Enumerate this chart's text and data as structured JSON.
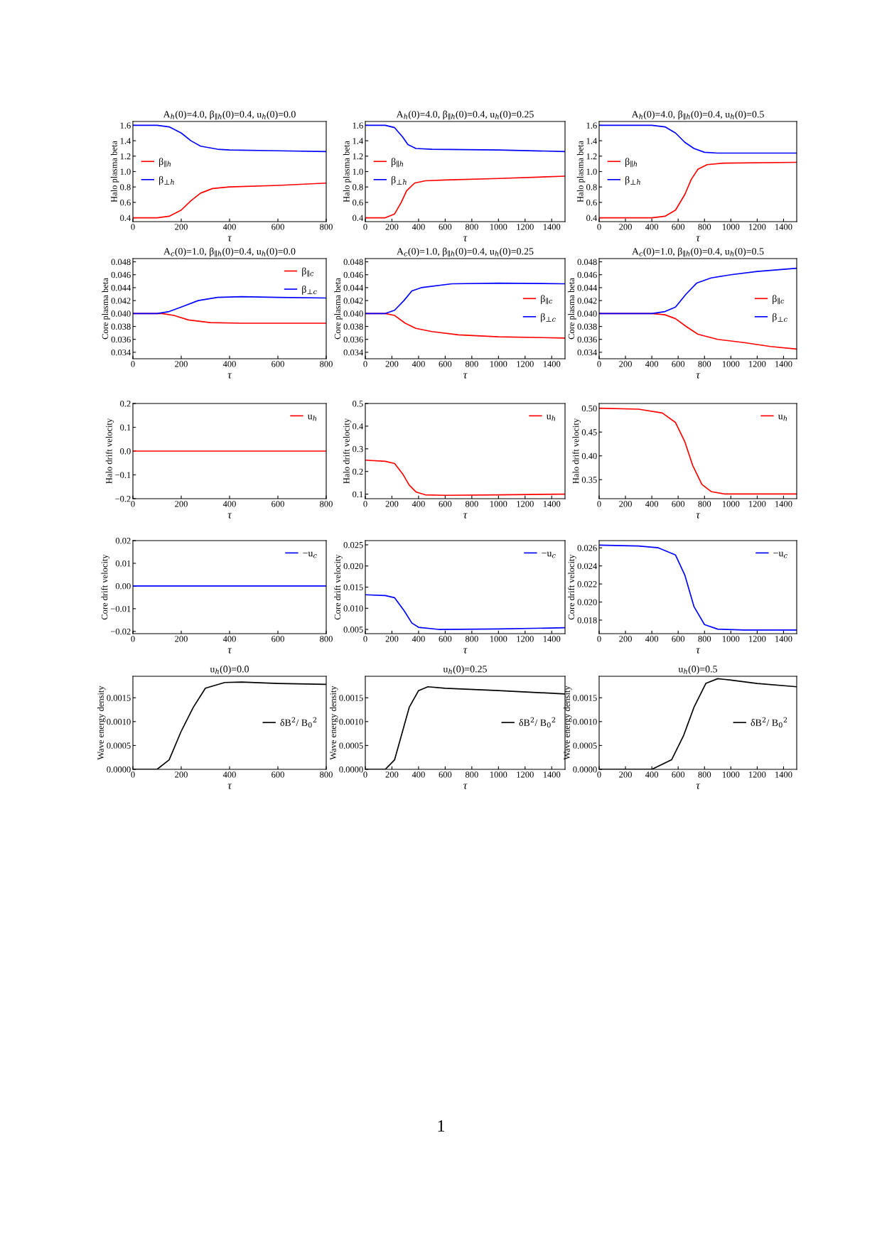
{
  "chart_data": [
    {
      "type": "line",
      "title": "A$_{h}$(0)=4.0, β$_{∥h}$(0)=0.4, u$_{h}$(0)=0.0",
      "xlabel": "τ",
      "ylabel": "Halo plasma beta",
      "xlim": [
        0,
        800
      ],
      "ylim": [
        0.35,
        1.65
      ],
      "xticks": [
        0,
        200,
        400,
        600,
        800
      ],
      "yticks": [
        0.4,
        0.6,
        0.8,
        {
          "value": 1,
          "label": "1.0"
        },
        1.2,
        1.4,
        1.6
      ],
      "legend": "left",
      "series": [
        {
          "name": "β$_{∥h}$",
          "color": "#ff0000",
          "x": [
            0,
            100,
            150,
            200,
            240,
            280,
            330,
            400,
            600,
            800
          ],
          "values": [
            0.4,
            0.4,
            0.42,
            0.5,
            0.62,
            0.72,
            0.78,
            0.8,
            0.82,
            0.85
          ]
        },
        {
          "name": "β$_{⊥h}$",
          "color": "#0000ff",
          "x": [
            0,
            100,
            150,
            200,
            240,
            280,
            350,
            400,
            600,
            800
          ],
          "values": [
            1.6,
            1.6,
            1.58,
            1.5,
            1.4,
            1.33,
            1.29,
            1.28,
            1.27,
            1.26
          ]
        }
      ]
    },
    {
      "type": "line",
      "title": "A$_{h}$(0)=4.0, β$_{∥h}$(0)=0.4, u$_{h}$(0)=0.25",
      "xlabel": "τ",
      "ylabel": "Halo plasma beta",
      "xlim": [
        0,
        1500
      ],
      "ylim": [
        0.35,
        1.65
      ],
      "xticks": [
        0,
        200,
        400,
        600,
        800,
        1000,
        1200,
        1400
      ],
      "yticks": [
        0.4,
        0.6,
        0.8,
        {
          "value": 1,
          "label": "1.0"
        },
        1.2,
        1.4,
        1.6
      ],
      "legend": "left",
      "series": [
        {
          "name": "β$_{∥h}$",
          "color": "#ff0000",
          "x": [
            0,
            150,
            220,
            270,
            310,
            370,
            450,
            600,
            1000,
            1500
          ],
          "values": [
            0.4,
            0.4,
            0.45,
            0.6,
            0.75,
            0.85,
            0.88,
            0.89,
            0.91,
            0.94
          ]
        },
        {
          "name": "β$_{⊥h}$",
          "color": "#0000ff",
          "x": [
            0,
            150,
            220,
            280,
            320,
            380,
            500,
            1000,
            1500
          ],
          "values": [
            1.6,
            1.6,
            1.57,
            1.45,
            1.35,
            1.3,
            1.29,
            1.28,
            1.26
          ]
        }
      ]
    },
    {
      "type": "line",
      "title": "A$_{h}$(0)=4.0, β$_{∥h}$(0)=0.4, u$_{h}$(0)=0.5",
      "xlabel": "τ",
      "ylabel": "Halo plasma beta",
      "xlim": [
        0,
        1500
      ],
      "ylim": [
        0.35,
        1.65
      ],
      "xticks": [
        0,
        200,
        400,
        600,
        800,
        1000,
        1200,
        1400
      ],
      "yticks": [
        0.4,
        0.6,
        0.8,
        {
          "value": 1,
          "label": "1.0"
        },
        1.2,
        1.4,
        1.6
      ],
      "legend": "left",
      "series": [
        {
          "name": "β$_{∥h}$",
          "color": "#ff0000",
          "x": [
            0,
            400,
            500,
            580,
            650,
            700,
            750,
            820,
            950,
            1500
          ],
          "values": [
            0.4,
            0.4,
            0.42,
            0.5,
            0.7,
            0.9,
            1.03,
            1.09,
            1.11,
            1.12
          ]
        },
        {
          "name": "β$_{⊥h}$",
          "color": "#0000ff",
          "x": [
            0,
            400,
            500,
            580,
            650,
            720,
            800,
            900,
            1500
          ],
          "values": [
            1.6,
            1.6,
            1.58,
            1.5,
            1.38,
            1.3,
            1.25,
            1.24,
            1.24
          ]
        }
      ]
    },
    {
      "type": "line",
      "title": "A$_{c}$(0)=1.0, β$_{∥h}$(0)=0.4, u$_{h}$(0)=0.0",
      "xlabel": "τ",
      "ylabel": "Core plasma beta",
      "xlim": [
        0,
        800
      ],
      "ylim": [
        0.033,
        0.0485
      ],
      "xticks": [
        0,
        200,
        400,
        600,
        800
      ],
      "yticks": [
        0.034,
        0.036,
        0.038,
        {
          "value": 0.04,
          "label": "0.040"
        },
        0.042,
        0.044,
        0.046,
        0.048
      ],
      "legend": "top right",
      "series": [
        {
          "name": "β$_{∥c}$",
          "color": "#ff0000",
          "x": [
            0,
            120,
            170,
            230,
            320,
            450,
            800
          ],
          "values": [
            0.04,
            0.04,
            0.0397,
            0.039,
            0.0386,
            0.0385,
            0.0385
          ]
        },
        {
          "name": "β$_{⊥c}$",
          "color": "#0000ff",
          "x": [
            0,
            100,
            150,
            200,
            270,
            350,
            450,
            600,
            800
          ],
          "values": [
            0.04,
            0.04,
            0.0403,
            0.041,
            0.042,
            0.0425,
            0.0426,
            0.0425,
            0.0424
          ]
        }
      ]
    },
    {
      "type": "line",
      "title": "A$_{c}$(0)=1.0, β$_{∥h}$(0)=0.4, u$_{h}$(0)=0.25",
      "xlabel": "τ",
      "ylabel": "Core plasma beta",
      "xlim": [
        0,
        1500
      ],
      "ylim": [
        0.033,
        0.0485
      ],
      "xticks": [
        0,
        200,
        400,
        600,
        800,
        1000,
        1200,
        1400
      ],
      "yticks": [
        0.034,
        0.036,
        0.038,
        {
          "value": 0.04,
          "label": "0.040"
        },
        0.042,
        0.044,
        0.046,
        0.048
      ],
      "legend": "right",
      "series": [
        {
          "name": "β$_{∥c}$",
          "color": "#ff0000",
          "x": [
            0,
            150,
            220,
            300,
            380,
            500,
            700,
            1000,
            1500
          ],
          "values": [
            0.04,
            0.04,
            0.0397,
            0.0385,
            0.0377,
            0.0372,
            0.0367,
            0.0364,
            0.0362
          ]
        },
        {
          "name": "β$_{⊥c}$",
          "color": "#0000ff",
          "x": [
            0,
            150,
            220,
            290,
            350,
            420,
            650,
            1000,
            1500
          ],
          "values": [
            0.04,
            0.04,
            0.0405,
            0.042,
            0.0435,
            0.044,
            0.0446,
            0.0447,
            0.0446
          ]
        }
      ]
    },
    {
      "type": "line",
      "title": "A$_{c}$(0)=1.0, β$_{∥h}$(0)=0.4, u$_{h}$(0)=0.5",
      "xlabel": "τ",
      "ylabel": "Core plasma beta",
      "xlim": [
        0,
        1500
      ],
      "ylim": [
        0.033,
        0.0485
      ],
      "xticks": [
        0,
        200,
        400,
        600,
        800,
        1000,
        1200,
        1400
      ],
      "yticks": [
        0.034,
        0.036,
        0.038,
        {
          "value": 0.04,
          "label": "0.040"
        },
        0.042,
        0.044,
        0.046,
        0.048
      ],
      "legend": "right",
      "series": [
        {
          "name": "β$_{∥c}$",
          "color": "#ff0000",
          "x": [
            0,
            400,
            500,
            580,
            660,
            750,
            900,
            1100,
            1300,
            1500
          ],
          "values": [
            0.04,
            0.04,
            0.0398,
            0.0392,
            0.038,
            0.0368,
            0.036,
            0.0355,
            0.0349,
            0.0345
          ]
        },
        {
          "name": "β$_{⊥c}$",
          "color": "#0000ff",
          "x": [
            0,
            400,
            500,
            580,
            660,
            740,
            850,
            1000,
            1200,
            1500
          ],
          "values": [
            0.04,
            0.04,
            0.0403,
            0.041,
            0.043,
            0.0447,
            0.0455,
            0.046,
            0.0465,
            0.047
          ]
        }
      ]
    },
    {
      "type": "line",
      "xlabel": "τ",
      "ylabel": "Halo drift velocity",
      "xlim": [
        0,
        800
      ],
      "ylim": [
        -0.2,
        0.2
      ],
      "xticks": [
        0,
        200,
        400,
        600,
        800
      ],
      "yticks": [
        {
          "value": -0.2,
          "label": "−0.2"
        },
        {
          "value": -0.1,
          "label": "−0.1"
        },
        {
          "value": 0,
          "label": "0.0"
        },
        0.1,
        0.2
      ],
      "legend": "top right",
      "series": [
        {
          "name": "u$_{h}$",
          "color": "#ff0000",
          "x": [
            0,
            800
          ],
          "values": [
            0.0,
            0.0
          ]
        }
      ]
    },
    {
      "type": "line",
      "xlabel": "τ",
      "ylabel": "Halo drift velocity",
      "xlim": [
        0,
        1500
      ],
      "ylim": [
        0.08,
        0.5
      ],
      "xticks": [
        0,
        200,
        400,
        600,
        800,
        1000,
        1200,
        1400
      ],
      "yticks": [
        0.1,
        0.2,
        0.3,
        0.4,
        0.5
      ],
      "legend": "top right",
      "series": [
        {
          "name": "u$_{h}$",
          "color": "#ff0000",
          "x": [
            0,
            150,
            220,
            280,
            330,
            380,
            450,
            600,
            1000,
            1500
          ],
          "values": [
            0.25,
            0.245,
            0.235,
            0.19,
            0.14,
            0.11,
            0.097,
            0.095,
            0.097,
            0.1
          ]
        }
      ]
    },
    {
      "type": "line",
      "xlabel": "τ",
      "ylabel": "Halo drift velocity",
      "xlim": [
        0,
        1500
      ],
      "ylim": [
        0.31,
        0.51
      ],
      "xticks": [
        0,
        200,
        400,
        600,
        800,
        1000,
        1200,
        1400
      ],
      "yticks": [
        0.35,
        {
          "value": 0.4,
          "label": "0.40"
        },
        0.45,
        {
          "value": 0.5,
          "label": "0.50"
        }
      ],
      "legend": "top right",
      "series": [
        {
          "name": "u$_{h}$",
          "color": "#ff0000",
          "x": [
            0,
            300,
            480,
            580,
            650,
            710,
            780,
            850,
            950,
            1500
          ],
          "values": [
            0.5,
            0.498,
            0.49,
            0.47,
            0.43,
            0.38,
            0.34,
            0.325,
            0.32,
            0.32
          ]
        }
      ]
    },
    {
      "type": "line",
      "xlabel": "τ",
      "ylabel": "Core drift velocity",
      "xlim": [
        0,
        800
      ],
      "ylim": [
        -0.021,
        0.02
      ],
      "xticks": [
        0,
        200,
        400,
        600,
        800
      ],
      "yticks": [
        {
          "value": -0.02,
          "label": "−0.02"
        },
        {
          "value": -0.01,
          "label": "−0.01"
        },
        {
          "value": 0,
          "label": "0.00"
        },
        0.01,
        0.02
      ],
      "legend": "top right",
      "series": [
        {
          "name": "−u$_{c}$",
          "color": "#0000ff",
          "x": [
            0,
            800
          ],
          "values": [
            0.0,
            0.0
          ]
        }
      ]
    },
    {
      "type": "line",
      "xlabel": "τ",
      "ylabel": "Core drift velocity",
      "xlim": [
        0,
        1500
      ],
      "ylim": [
        0.004,
        0.026
      ],
      "xticks": [
        0,
        200,
        400,
        600,
        800,
        1000,
        1200,
        1400
      ],
      "yticks": [
        0.005,
        {
          "value": 0.01,
          "label": "0.010"
        },
        0.015,
        {
          "value": 0.02,
          "label": "0.020"
        },
        0.025
      ],
      "legend": "top right",
      "series": [
        {
          "name": "−u$_{c}$",
          "color": "#0000ff",
          "x": [
            0,
            150,
            220,
            290,
            350,
            400,
            550,
            1000,
            1500
          ],
          "values": [
            0.0132,
            0.013,
            0.0125,
            0.0095,
            0.0065,
            0.0055,
            0.005,
            0.0051,
            0.0054
          ]
        }
      ]
    },
    {
      "type": "line",
      "xlabel": "τ",
      "ylabel": "Core drift velocity",
      "xlim": [
        0,
        1500
      ],
      "ylim": [
        0.0165,
        0.0268
      ],
      "xticks": [
        0,
        200,
        400,
        600,
        800,
        1000,
        1200,
        1400
      ],
      "yticks": [
        0.018,
        {
          "value": 0.02,
          "label": "0.020"
        },
        0.022,
        0.024,
        0.026
      ],
      "legend": "top right",
      "series": [
        {
          "name": "−u$_{c}$",
          "color": "#0000ff",
          "x": [
            0,
            300,
            450,
            580,
            650,
            720,
            800,
            900,
            1100,
            1500
          ],
          "values": [
            0.0263,
            0.0262,
            0.026,
            0.0252,
            0.023,
            0.0195,
            0.0175,
            0.017,
            0.0169,
            0.0169
          ]
        }
      ]
    },
    {
      "type": "line",
      "title": "u$_{h}$(0)=0.0",
      "xlabel": "τ",
      "ylabel": "Wave energy density",
      "xlim": [
        0,
        800
      ],
      "ylim": [
        0,
        0.00195
      ],
      "xticks": [
        0,
        200,
        400,
        600,
        800
      ],
      "yticks": [
        {
          "value": 0,
          "label": "0.0000"
        },
        {
          "value": 0.0005,
          "label": "0.0005"
        },
        {
          "value": 0.001,
          "label": "0.0010"
        },
        {
          "value": 0.0015,
          "label": "0.0015"
        }
      ],
      "legend": "right",
      "series": [
        {
          "name": "δB$^{2}$/ B$_{0}$$^{2}$",
          "color": "#000000",
          "x": [
            0,
            100,
            150,
            200,
            250,
            300,
            380,
            450,
            600,
            800
          ],
          "values": [
            0,
            0.0,
            0.0002,
            0.0008,
            0.0013,
            0.0017,
            0.00182,
            0.00183,
            0.0018,
            0.00178
          ]
        }
      ]
    },
    {
      "type": "line",
      "title": "u$_{h}$(0)=0.25",
      "xlabel": "τ",
      "ylabel": "Wave energy density",
      "xlim": [
        0,
        1500
      ],
      "ylim": [
        0,
        0.00195
      ],
      "xticks": [
        0,
        200,
        400,
        600,
        800,
        1000,
        1200,
        1400
      ],
      "yticks": [
        {
          "value": 0,
          "label": "0.0000"
        },
        {
          "value": 0.0005,
          "label": "0.0005"
        },
        {
          "value": 0.001,
          "label": "0.0010"
        },
        {
          "value": 0.0015,
          "label": "0.0015"
        }
      ],
      "legend": "right",
      "series": [
        {
          "name": "δB$^{2}$/ B$_{0}$$^{2}$",
          "color": "#000000",
          "x": [
            0,
            150,
            220,
            270,
            330,
            400,
            470,
            600,
            1000,
            1500
          ],
          "values": [
            0,
            0.0,
            0.0002,
            0.0007,
            0.0013,
            0.00165,
            0.00173,
            0.0017,
            0.00165,
            0.00158
          ]
        }
      ]
    },
    {
      "type": "line",
      "title": "u$_{h}$(0)=0.5",
      "xlabel": "τ",
      "ylabel": "Wave energy density",
      "xlim": [
        0,
        1500
      ],
      "ylim": [
        0,
        0.00195
      ],
      "xticks": [
        0,
        200,
        400,
        600,
        800,
        1000,
        1200,
        1400
      ],
      "yticks": [
        {
          "value": 0,
          "label": "0.0000"
        },
        {
          "value": 0.0005,
          "label": "0.0005"
        },
        {
          "value": 0.001,
          "label": "0.0010"
        },
        {
          "value": 0.0015,
          "label": "0.0015"
        }
      ],
      "legend": "right",
      "annotations": [
        "1"
      ],
      "series": [
        {
          "name": "δB$^{2}$/ B$_{0}$$^{2}$",
          "color": "#000000",
          "x": [
            0,
            400,
            550,
            640,
            720,
            810,
            900,
            1000,
            1200,
            1500
          ],
          "values": [
            0,
            0.0,
            0.0002,
            0.0007,
            0.0013,
            0.0018,
            0.0019,
            0.00187,
            0.0018,
            0.00173
          ]
        }
      ]
    }
  ]
}
